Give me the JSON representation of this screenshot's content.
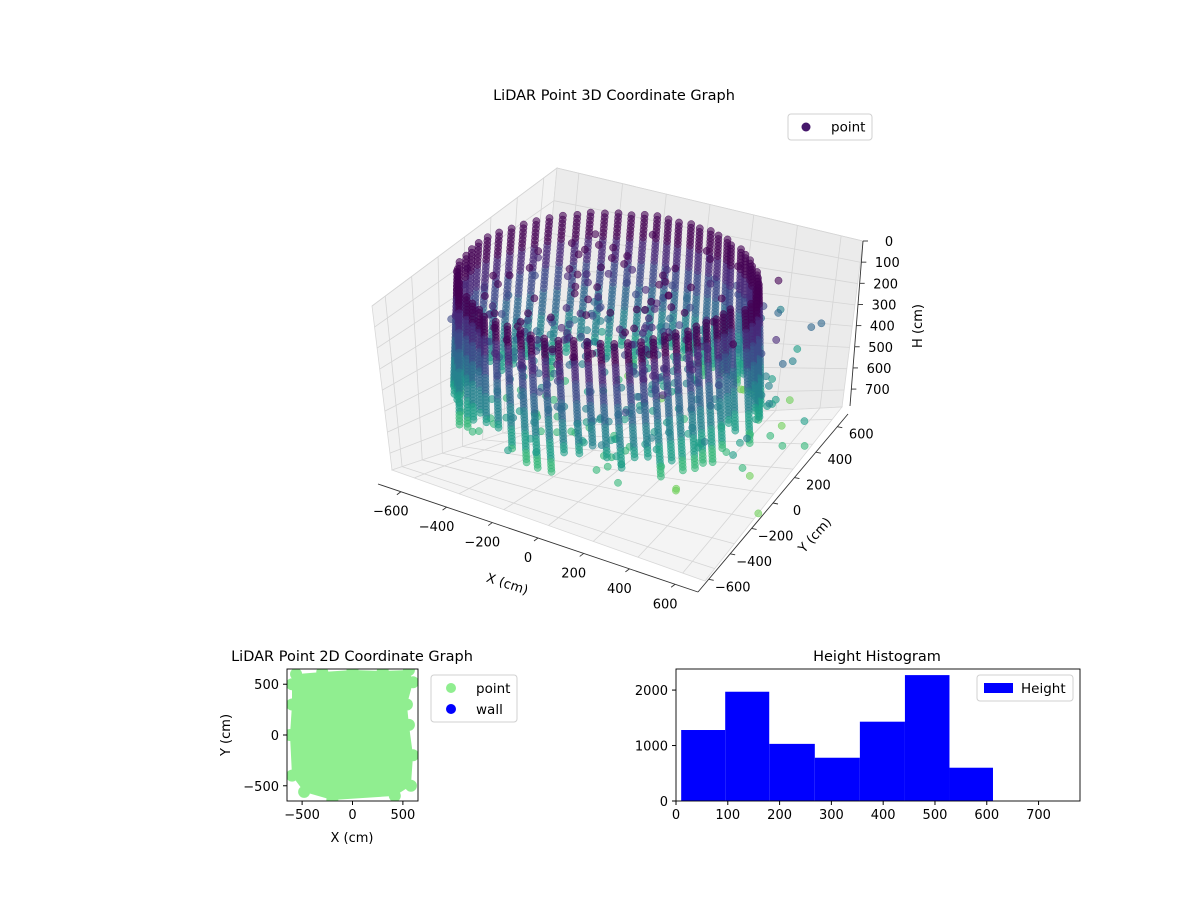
{
  "chart_data": [
    {
      "type": "scatter",
      "title": "LiDAR Point 3D Coordinate Graph",
      "xlabel": "X (cm)",
      "ylabel": "Y (cm)",
      "zlabel": "H (cm)",
      "xlim": [
        -700,
        700
      ],
      "ylim": [
        -700,
        700
      ],
      "zlim": [
        0,
        780
      ],
      "zaxis_inverted": true,
      "x_ticks": [
        "−600",
        "−400",
        "−200",
        "0",
        "200",
        "400",
        "600"
      ],
      "y_ticks": [
        "−600",
        "−400",
        "−200",
        "0",
        "200",
        "400",
        "600"
      ],
      "z_ticks": [
        "0",
        "100",
        "200",
        "300",
        "400",
        "500",
        "600",
        "700"
      ],
      "grid": true,
      "legend": {
        "placement": "top-right",
        "entries": [
          {
            "name": "point",
            "color": "#46186b"
          }
        ]
      },
      "colormap": [
        "#440154",
        "#482878",
        "#3e4a89",
        "#31688e",
        "#26828e",
        "#1f9e89",
        "#35b779",
        "#6ece58"
      ],
      "shape": "ring of vertical point columns around the sensor, radius about 400-600 cm, heights about 0-600 cm, with scattered points inside and outside"
    },
    {
      "type": "scatter",
      "title": "LiDAR Point 2D Coordinate Graph",
      "xlabel": "X (cm)",
      "ylabel": "Y (cm)",
      "xlim": [
        -650,
        650
      ],
      "ylim": [
        -650,
        650
      ],
      "x_ticks": [
        "−500",
        "0",
        "500"
      ],
      "y_ticks": [
        "−500",
        "0",
        "500"
      ],
      "legend": {
        "placement": "right-outside",
        "entries": [
          {
            "name": "point",
            "color": "#90ee90"
          },
          {
            "name": "wall",
            "color": "#0000ff"
          }
        ]
      }
    },
    {
      "type": "bar",
      "title": "Height Histogram",
      "xlabel": "",
      "ylabel": "",
      "bin_edges": [
        10,
        95,
        180,
        268,
        355,
        442,
        528,
        612
      ],
      "values": [
        1280,
        1970,
        1030,
        780,
        1430,
        2270,
        600
      ],
      "xlim": [
        0,
        780
      ],
      "ylim": [
        0,
        2380
      ],
      "x_ticks": [
        "0",
        "100",
        "200",
        "300",
        "400",
        "500",
        "600",
        "700"
      ],
      "y_ticks": [
        "0",
        "1000",
        "2000"
      ],
      "color": "#0000ff",
      "legend": {
        "placement": "top-right",
        "entries": [
          {
            "name": "Height",
            "color": "#0000ff"
          }
        ]
      }
    }
  ]
}
